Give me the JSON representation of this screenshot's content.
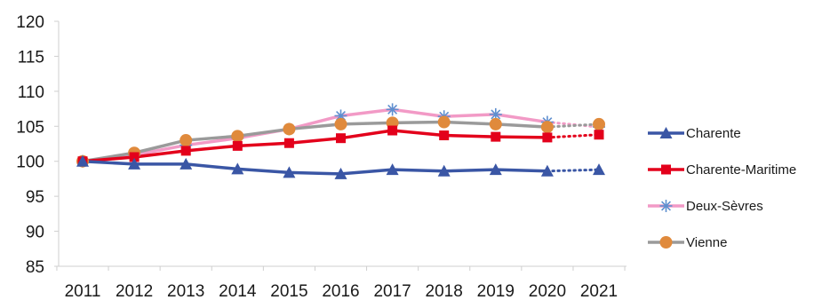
{
  "chart_data": {
    "type": "line",
    "categories": [
      "2011",
      "2012",
      "2013",
      "2014",
      "2015",
      "2016",
      "2017",
      "2018",
      "2019",
      "2020",
      "2021"
    ],
    "ylim": [
      85,
      120
    ],
    "yticks": [
      85,
      90,
      95,
      100,
      105,
      110,
      115,
      120
    ],
    "grid": false,
    "legend_position": "right",
    "series": [
      {
        "name": "Charente",
        "color": "#3a56a5",
        "marker": "triangle",
        "values": [
          100,
          99.6,
          99.6,
          98.9,
          98.4,
          98.2,
          98.8,
          98.6,
          98.8,
          98.6,
          98.8
        ],
        "dotted_last_segment": true
      },
      {
        "name": "Charente-Maritime",
        "color": "#e3001b",
        "marker": "square",
        "values": [
          100,
          100.6,
          101.5,
          102.2,
          102.6,
          103.3,
          104.4,
          103.7,
          103.5,
          103.4,
          103.8
        ],
        "dotted_last_segment": true
      },
      {
        "name": "Deux-Sèvres",
        "color": "#f29ac6",
        "marker": "asterisk",
        "values": [
          100,
          100.9,
          102.3,
          103.3,
          104.6,
          106.5,
          107.4,
          106.4,
          106.7,
          105.6,
          104.9
        ],
        "dotted_last_segment": true
      },
      {
        "name": "Vienne",
        "color": "#9a9a9a",
        "marker": "circle",
        "values": [
          100,
          101.2,
          103.0,
          103.6,
          104.6,
          105.3,
          105.5,
          105.6,
          105.3,
          104.9,
          105.3
        ],
        "dotted_last_segment": true
      }
    ]
  }
}
